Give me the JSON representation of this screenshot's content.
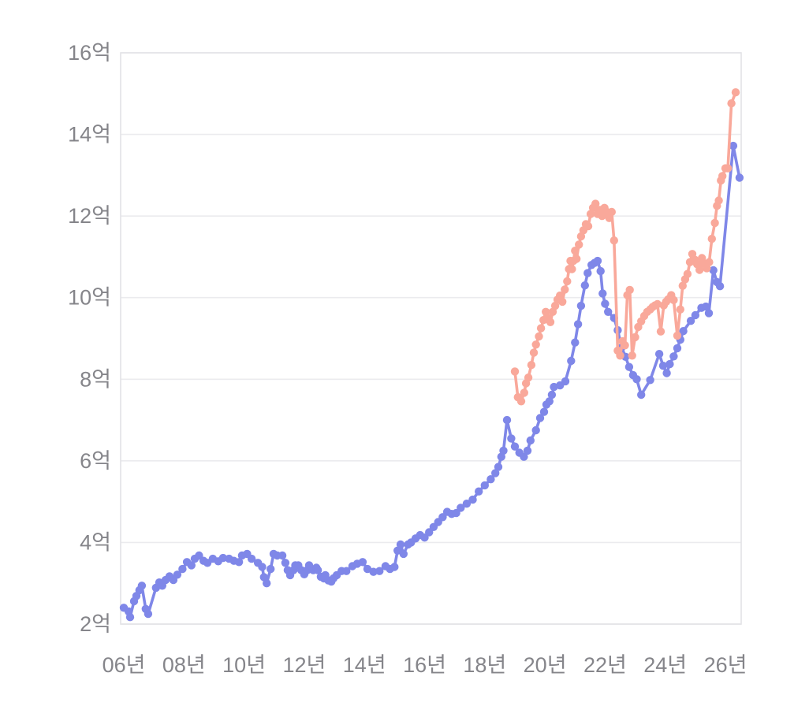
{
  "chart_data": {
    "type": "line",
    "title": "",
    "legend": "none",
    "grid": "horizontal",
    "background": "#ffffff",
    "grid_color": "#ebebee",
    "border_color": "#e3e3e6",
    "tick_label_color": "#85858a",
    "y_axis": {
      "min": 2,
      "max": 16,
      "step": 2,
      "unit": "억",
      "tick_values": [
        2,
        4,
        6,
        8,
        10,
        12,
        14,
        16
      ],
      "tick_labels": [
        "2억",
        "4억",
        "6억",
        "8억",
        "10억",
        "12억",
        "14억",
        "16억"
      ]
    },
    "x_axis": {
      "min_year": 2006,
      "max_year": 2026,
      "step": 2,
      "unit": "년",
      "tick_values": [
        2006,
        2008,
        2010,
        2012,
        2014,
        2016,
        2018,
        2020,
        2022,
        2024,
        2026
      ],
      "tick_labels": [
        "06년",
        "08년",
        "10년",
        "12년",
        "14년",
        "16년",
        "18년",
        "20년",
        "22년",
        "24년",
        "26년"
      ]
    },
    "series": [
      {
        "name": "blue-series",
        "color": "#7f87e8",
        "points": [
          [
            2006.0,
            2.4
          ],
          [
            2006.16,
            2.31
          ],
          [
            2006.21,
            2.17
          ],
          [
            2006.34,
            2.56
          ],
          [
            2006.42,
            2.69
          ],
          [
            2006.52,
            2.83
          ],
          [
            2006.6,
            2.94
          ],
          [
            2006.73,
            2.37
          ],
          [
            2006.81,
            2.25
          ],
          [
            2007.07,
            2.89
          ],
          [
            2007.18,
            3.02
          ],
          [
            2007.28,
            2.94
          ],
          [
            2007.39,
            3.08
          ],
          [
            2007.52,
            3.17
          ],
          [
            2007.65,
            3.08
          ],
          [
            2007.78,
            3.21
          ],
          [
            2007.95,
            3.35
          ],
          [
            2008.1,
            3.52
          ],
          [
            2008.25,
            3.44
          ],
          [
            2008.36,
            3.6
          ],
          [
            2008.5,
            3.68
          ],
          [
            2008.65,
            3.55
          ],
          [
            2008.78,
            3.5
          ],
          [
            2008.96,
            3.6
          ],
          [
            2009.14,
            3.54
          ],
          [
            2009.3,
            3.62
          ],
          [
            2009.5,
            3.6
          ],
          [
            2009.66,
            3.55
          ],
          [
            2009.83,
            3.52
          ],
          [
            2009.93,
            3.68
          ],
          [
            2010.1,
            3.72
          ],
          [
            2010.25,
            3.6
          ],
          [
            2010.46,
            3.5
          ],
          [
            2010.6,
            3.4
          ],
          [
            2010.66,
            3.15
          ],
          [
            2010.75,
            3.0
          ],
          [
            2010.88,
            3.35
          ],
          [
            2010.98,
            3.72
          ],
          [
            2011.1,
            3.68
          ],
          [
            2011.27,
            3.68
          ],
          [
            2011.37,
            3.5
          ],
          [
            2011.45,
            3.32
          ],
          [
            2011.53,
            3.2
          ],
          [
            2011.64,
            3.32
          ],
          [
            2011.7,
            3.44
          ],
          [
            2011.8,
            3.44
          ],
          [
            2011.9,
            3.32
          ],
          [
            2012.0,
            3.22
          ],
          [
            2012.1,
            3.32
          ],
          [
            2012.16,
            3.44
          ],
          [
            2012.3,
            3.32
          ],
          [
            2012.4,
            3.38
          ],
          [
            2012.45,
            3.32
          ],
          [
            2012.55,
            3.16
          ],
          [
            2012.65,
            3.12
          ],
          [
            2012.7,
            3.2
          ],
          [
            2012.8,
            3.07
          ],
          [
            2012.9,
            3.04
          ],
          [
            2012.97,
            3.12
          ],
          [
            2013.08,
            3.2
          ],
          [
            2013.24,
            3.3
          ],
          [
            2013.4,
            3.3
          ],
          [
            2013.6,
            3.42
          ],
          [
            2013.76,
            3.48
          ],
          [
            2013.94,
            3.52
          ],
          [
            2014.1,
            3.35
          ],
          [
            2014.3,
            3.28
          ],
          [
            2014.5,
            3.3
          ],
          [
            2014.7,
            3.42
          ],
          [
            2014.85,
            3.35
          ],
          [
            2015.0,
            3.4
          ],
          [
            2015.1,
            3.8
          ],
          [
            2015.2,
            3.95
          ],
          [
            2015.3,
            3.72
          ],
          [
            2015.45,
            3.95
          ],
          [
            2015.55,
            4.0
          ],
          [
            2015.7,
            4.1
          ],
          [
            2015.85,
            4.18
          ],
          [
            2016.0,
            4.12
          ],
          [
            2016.15,
            4.25
          ],
          [
            2016.3,
            4.38
          ],
          [
            2016.45,
            4.5
          ],
          [
            2016.6,
            4.62
          ],
          [
            2016.75,
            4.75
          ],
          [
            2016.9,
            4.7
          ],
          [
            2017.05,
            4.72
          ],
          [
            2017.2,
            4.85
          ],
          [
            2017.4,
            4.95
          ],
          [
            2017.6,
            5.05
          ],
          [
            2017.8,
            5.25
          ],
          [
            2018.0,
            5.4
          ],
          [
            2018.2,
            5.55
          ],
          [
            2018.35,
            5.7
          ],
          [
            2018.45,
            5.85
          ],
          [
            2018.55,
            6.1
          ],
          [
            2018.62,
            6.25
          ],
          [
            2018.74,
            7.0
          ],
          [
            2018.88,
            6.55
          ],
          [
            2019.0,
            6.35
          ],
          [
            2019.15,
            6.2
          ],
          [
            2019.3,
            6.1
          ],
          [
            2019.42,
            6.25
          ],
          [
            2019.52,
            6.5
          ],
          [
            2019.7,
            6.75
          ],
          [
            2019.84,
            7.05
          ],
          [
            2019.97,
            7.2
          ],
          [
            2020.05,
            7.38
          ],
          [
            2020.15,
            7.46
          ],
          [
            2020.23,
            7.62
          ],
          [
            2020.3,
            7.81
          ],
          [
            2020.5,
            7.85
          ],
          [
            2020.68,
            7.95
          ],
          [
            2020.87,
            8.45
          ],
          [
            2021.0,
            8.9
          ],
          [
            2021.1,
            9.35
          ],
          [
            2021.2,
            9.8
          ],
          [
            2021.33,
            10.3
          ],
          [
            2021.42,
            10.6
          ],
          [
            2021.55,
            10.8
          ],
          [
            2021.65,
            10.85
          ],
          [
            2021.75,
            10.9
          ],
          [
            2021.85,
            10.65
          ],
          [
            2021.92,
            10.1
          ],
          [
            2022.0,
            9.85
          ],
          [
            2022.1,
            9.65
          ],
          [
            2022.3,
            9.5
          ],
          [
            2022.42,
            9.2
          ],
          [
            2022.55,
            8.78
          ],
          [
            2022.68,
            8.55
          ],
          [
            2022.8,
            8.3
          ],
          [
            2022.93,
            8.1
          ],
          [
            2023.05,
            8.0
          ],
          [
            2023.2,
            7.62
          ],
          [
            2023.5,
            7.98
          ],
          [
            2023.8,
            8.62
          ],
          [
            2023.93,
            8.33
          ],
          [
            2024.05,
            8.15
          ],
          [
            2024.15,
            8.37
          ],
          [
            2024.28,
            8.56
          ],
          [
            2024.4,
            8.76
          ],
          [
            2024.5,
            8.97
          ],
          [
            2024.6,
            9.18
          ],
          [
            2024.85,
            9.43
          ],
          [
            2025.0,
            9.57
          ],
          [
            2025.2,
            9.75
          ],
          [
            2025.35,
            9.78
          ],
          [
            2025.45,
            9.62
          ],
          [
            2025.6,
            10.67
          ],
          [
            2025.72,
            10.38
          ],
          [
            2025.82,
            10.28
          ],
          [
            2026.26,
            13.72
          ],
          [
            2026.47,
            12.94
          ]
        ]
      },
      {
        "name": "salmon-series",
        "color": "#f9a89a",
        "points": [
          [
            2019.0,
            8.19
          ],
          [
            2019.1,
            7.56
          ],
          [
            2019.21,
            7.46
          ],
          [
            2019.31,
            7.67
          ],
          [
            2019.37,
            7.9
          ],
          [
            2019.45,
            8.04
          ],
          [
            2019.55,
            8.35
          ],
          [
            2019.63,
            8.65
          ],
          [
            2019.7,
            8.85
          ],
          [
            2019.8,
            9.05
          ],
          [
            2019.87,
            9.25
          ],
          [
            2019.95,
            9.45
          ],
          [
            2020.03,
            9.65
          ],
          [
            2020.1,
            9.5
          ],
          [
            2020.18,
            9.4
          ],
          [
            2020.26,
            9.65
          ],
          [
            2020.34,
            9.8
          ],
          [
            2020.42,
            9.95
          ],
          [
            2020.5,
            10.05
          ],
          [
            2020.58,
            9.9
          ],
          [
            2020.66,
            10.2
          ],
          [
            2020.74,
            10.4
          ],
          [
            2020.8,
            10.7
          ],
          [
            2020.85,
            10.9
          ],
          [
            2020.9,
            10.7
          ],
          [
            2020.95,
            10.9
          ],
          [
            2021.0,
            11.15
          ],
          [
            2021.05,
            10.95
          ],
          [
            2021.13,
            11.3
          ],
          [
            2021.2,
            11.5
          ],
          [
            2021.28,
            11.65
          ],
          [
            2021.36,
            11.8
          ],
          [
            2021.44,
            11.75
          ],
          [
            2021.52,
            12.05
          ],
          [
            2021.6,
            12.2
          ],
          [
            2021.68,
            12.3
          ],
          [
            2021.75,
            12.05
          ],
          [
            2021.83,
            12.15
          ],
          [
            2021.9,
            12.0
          ],
          [
            2021.98,
            12.2
          ],
          [
            2022.06,
            12.1
          ],
          [
            2022.14,
            11.95
          ],
          [
            2022.22,
            12.1
          ],
          [
            2022.3,
            11.4
          ],
          [
            2022.42,
            8.7
          ],
          [
            2022.5,
            8.58
          ],
          [
            2022.58,
            8.93
          ],
          [
            2022.66,
            8.83
          ],
          [
            2022.74,
            10.06
          ],
          [
            2022.82,
            10.19
          ],
          [
            2022.9,
            8.58
          ],
          [
            2023.0,
            9.03
          ],
          [
            2023.1,
            9.28
          ],
          [
            2023.2,
            9.42
          ],
          [
            2023.3,
            9.55
          ],
          [
            2023.4,
            9.65
          ],
          [
            2023.5,
            9.71
          ],
          [
            2023.58,
            9.77
          ],
          [
            2023.66,
            9.81
          ],
          [
            2023.74,
            9.84
          ],
          [
            2023.85,
            9.17
          ],
          [
            2023.95,
            9.81
          ],
          [
            2024.03,
            9.9
          ],
          [
            2024.1,
            9.96
          ],
          [
            2024.2,
            10.06
          ],
          [
            2024.28,
            9.94
          ],
          [
            2024.4,
            9.07
          ],
          [
            2024.5,
            9.71
          ],
          [
            2024.58,
            10.29
          ],
          [
            2024.66,
            10.45
          ],
          [
            2024.74,
            10.58
          ],
          [
            2024.82,
            10.87
          ],
          [
            2024.9,
            11.07
          ],
          [
            2024.98,
            10.93
          ],
          [
            2025.06,
            10.82
          ],
          [
            2025.14,
            10.68
          ],
          [
            2025.22,
            10.97
          ],
          [
            2025.3,
            10.83
          ],
          [
            2025.38,
            10.72
          ],
          [
            2025.46,
            10.87
          ],
          [
            2025.55,
            11.44
          ],
          [
            2025.65,
            11.83
          ],
          [
            2025.72,
            12.25
          ],
          [
            2025.78,
            12.38
          ],
          [
            2025.85,
            12.87
          ],
          [
            2025.9,
            12.98
          ],
          [
            2026.0,
            13.17
          ],
          [
            2026.08,
            13.17
          ],
          [
            2026.2,
            14.76
          ],
          [
            2026.34,
            15.03
          ]
        ]
      }
    ]
  }
}
